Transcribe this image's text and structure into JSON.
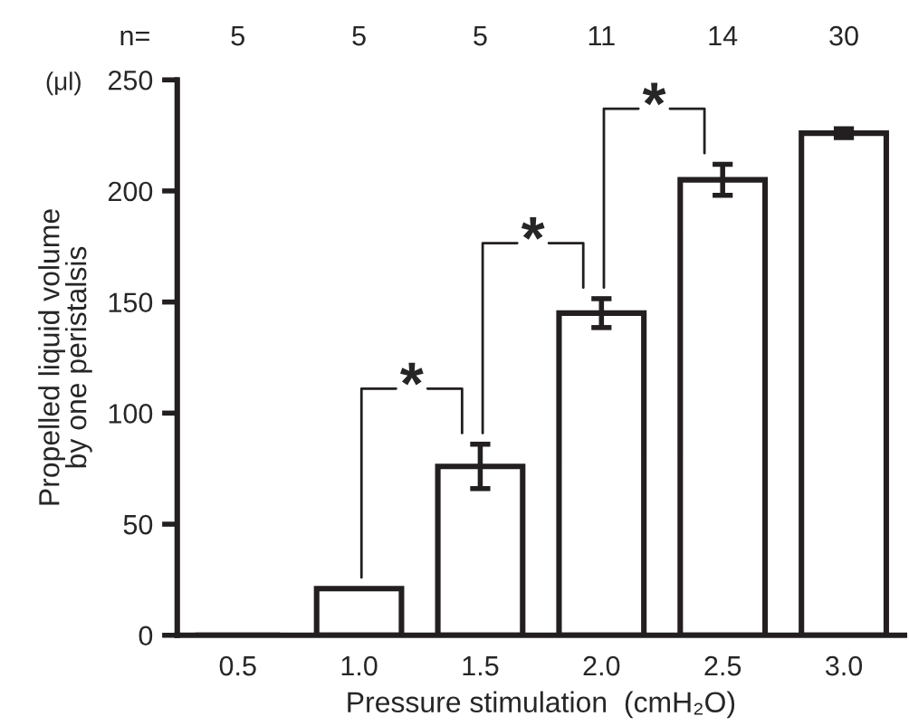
{
  "chart_data": {
    "type": "bar",
    "xlabel": "Pressure stimulation  (cmH₂O)",
    "ylabel": "Propelled liquid volume\nby one peristalsis",
    "categories": [
      "0.5",
      "1.0",
      "1.5",
      "2.0",
      "2.5",
      "3.0"
    ],
    "values": [
      0,
      21,
      76,
      145,
      205,
      226
    ],
    "errors": [
      null,
      null,
      10,
      6.5,
      7,
      2
    ],
    "color": "#ffffff",
    "ylim": [
      0,
      250
    ],
    "yticks": [
      0,
      50,
      100,
      150,
      200,
      250
    ],
    "grid": false,
    "annotations": [
      "(μl)",
      "n=",
      "5",
      "5",
      "5",
      "11",
      "14",
      "30",
      "*",
      "*",
      "*"
    ]
  }
}
